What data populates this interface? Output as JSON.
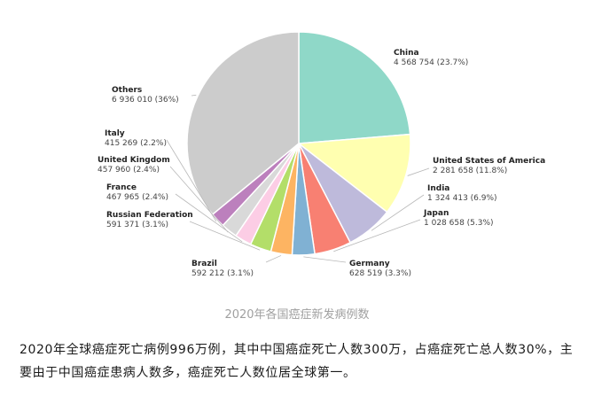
{
  "chart_data": {
    "type": "pie",
    "title": "2020年各国癌症新发病例数",
    "slices": [
      {
        "name": "China",
        "value_text": "4 568 754 (23.7%)",
        "value": 4568754,
        "percent": 23.7,
        "color": "#8fd8c8"
      },
      {
        "name": "United States of America",
        "value_text": "2 281 658 (11.8%)",
        "value": 2281658,
        "percent": 11.8,
        "color": "#ffffb0"
      },
      {
        "name": "India",
        "value_text": "1 324 413 (6.9%)",
        "value": 1324413,
        "percent": 6.9,
        "color": "#bebadb"
      },
      {
        "name": "Japan",
        "value_text": "1 028 658 (5.3%)",
        "value": 1028658,
        "percent": 5.3,
        "color": "#f88072"
      },
      {
        "name": "Germany",
        "value_text": "628 519 (3.3%)",
        "value": 628519,
        "percent": 3.3,
        "color": "#80b1d3"
      },
      {
        "name": "Brazil",
        "value_text": "592 212 (3.1%)",
        "value": 592212,
        "percent": 3.1,
        "color": "#fdb462"
      },
      {
        "name": "Russian Federation",
        "value_text": "591 371 (3.1%)",
        "value": 591371,
        "percent": 3.1,
        "color": "#b3de69"
      },
      {
        "name": "France",
        "value_text": "467 965 (2.4%)",
        "value": 467965,
        "percent": 2.4,
        "color": "#fccde5"
      },
      {
        "name": "United Kingdom",
        "value_text": "457 960 (2.4%)",
        "value": 457960,
        "percent": 2.4,
        "color": "#d9d9d9"
      },
      {
        "name": "Italy",
        "value_text": "415 269 (2.2%)",
        "value": 415269,
        "percent": 2.2,
        "color": "#bc80bd"
      },
      {
        "name": "Others",
        "value_text": "6 936 010 (36%)",
        "value": 6936010,
        "percent": 36,
        "color": "#cccccc"
      }
    ]
  },
  "description": "2020年全球癌症死亡病例996万例，其中中国癌症死亡人数300万，占癌症死亡总人数30%，主要由于中国癌症患病人数多，癌症死亡人数位居全球第一。"
}
